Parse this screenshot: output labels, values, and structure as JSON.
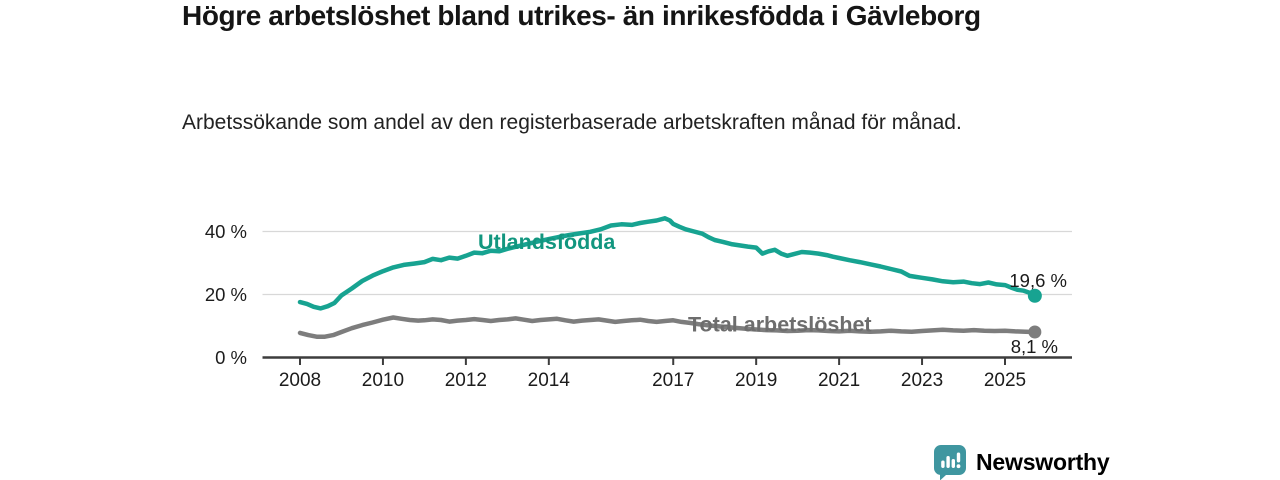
{
  "chart_data": {
    "type": "line",
    "title": "Högre arbetslöshet bland utrikes- än inrikesfödda i Gävleborg",
    "subtitle": "Arbetssökande som andel av den registerbaserade arbetskraften månad för månad.",
    "xlabel": "",
    "ylabel": "",
    "unit": "%",
    "grid": "horizontal-only",
    "legend_position": "inline-labels-on-lines",
    "xlim": [
      2007.1,
      2026.6
    ],
    "ylim": [
      0,
      47
    ],
    "x_ticks": [
      2008,
      2010,
      2012,
      2014,
      2017,
      2019,
      2021,
      2023,
      2025
    ],
    "x_tick_labels": [
      "2008",
      "2010",
      "2012",
      "2014",
      "2017",
      "2019",
      "2021",
      "2023",
      "2025"
    ],
    "y_ticks": [
      0,
      20,
      40
    ],
    "y_tick_labels": [
      "0 %",
      "20 %",
      "40 %"
    ],
    "axis_color": "#3d3d3d",
    "gridline_color": "#d8d8d8",
    "tick_label_color": "#1c1c1c",
    "annotation_color": "#1a1a1a",
    "series": [
      {
        "name": "Utlandsfödda",
        "color": "#17a391",
        "label_color": "#12967f",
        "end_value": 19.6,
        "end_label": "19,6 %",
        "points": [
          [
            2008.0,
            17.6
          ],
          [
            2008.17,
            17.0
          ],
          [
            2008.33,
            16.1
          ],
          [
            2008.5,
            15.6
          ],
          [
            2008.67,
            16.3
          ],
          [
            2008.83,
            17.3
          ],
          [
            2009.0,
            19.7
          ],
          [
            2009.25,
            21.9
          ],
          [
            2009.5,
            24.3
          ],
          [
            2009.75,
            26.0
          ],
          [
            2010.0,
            27.4
          ],
          [
            2010.25,
            28.6
          ],
          [
            2010.5,
            29.4
          ],
          [
            2010.75,
            29.8
          ],
          [
            2011.0,
            30.3
          ],
          [
            2011.2,
            31.3
          ],
          [
            2011.4,
            30.9
          ],
          [
            2011.6,
            31.7
          ],
          [
            2011.8,
            31.4
          ],
          [
            2012.0,
            32.3
          ],
          [
            2012.2,
            33.3
          ],
          [
            2012.4,
            33.1
          ],
          [
            2012.6,
            33.9
          ],
          [
            2012.8,
            33.7
          ],
          [
            2013.0,
            34.5
          ],
          [
            2013.25,
            35.3
          ],
          [
            2013.5,
            36.1
          ],
          [
            2013.75,
            36.9
          ],
          [
            2014.0,
            37.6
          ],
          [
            2014.25,
            38.3
          ],
          [
            2014.5,
            38.9
          ],
          [
            2014.75,
            39.4
          ],
          [
            2015.0,
            39.9
          ],
          [
            2015.25,
            40.7
          ],
          [
            2015.5,
            41.9
          ],
          [
            2015.75,
            42.3
          ],
          [
            2016.0,
            42.1
          ],
          [
            2016.2,
            42.7
          ],
          [
            2016.4,
            43.1
          ],
          [
            2016.6,
            43.5
          ],
          [
            2016.8,
            44.2
          ],
          [
            2016.92,
            43.5
          ],
          [
            2017.0,
            42.4
          ],
          [
            2017.15,
            41.5
          ],
          [
            2017.3,
            40.7
          ],
          [
            2017.5,
            40.0
          ],
          [
            2017.7,
            39.3
          ],
          [
            2017.85,
            38.2
          ],
          [
            2018.0,
            37.3
          ],
          [
            2018.2,
            36.7
          ],
          [
            2018.4,
            36.0
          ],
          [
            2018.6,
            35.6
          ],
          [
            2018.8,
            35.2
          ],
          [
            2019.0,
            34.9
          ],
          [
            2019.15,
            33.0
          ],
          [
            2019.3,
            33.7
          ],
          [
            2019.45,
            34.2
          ],
          [
            2019.6,
            33.0
          ],
          [
            2019.75,
            32.3
          ],
          [
            2019.9,
            32.8
          ],
          [
            2020.1,
            33.5
          ],
          [
            2020.3,
            33.3
          ],
          [
            2020.5,
            33.0
          ],
          [
            2020.7,
            32.5
          ],
          [
            2020.85,
            32.0
          ],
          [
            2021.0,
            31.6
          ],
          [
            2021.25,
            30.9
          ],
          [
            2021.5,
            30.3
          ],
          [
            2021.75,
            29.6
          ],
          [
            2022.0,
            28.9
          ],
          [
            2022.25,
            28.1
          ],
          [
            2022.5,
            27.3
          ],
          [
            2022.7,
            25.9
          ],
          [
            2022.85,
            25.6
          ],
          [
            2023.0,
            25.3
          ],
          [
            2023.25,
            24.8
          ],
          [
            2023.5,
            24.2
          ],
          [
            2023.75,
            23.9
          ],
          [
            2024.0,
            24.1
          ],
          [
            2024.2,
            23.6
          ],
          [
            2024.4,
            23.3
          ],
          [
            2024.6,
            23.8
          ],
          [
            2024.8,
            23.2
          ],
          [
            2025.0,
            23.0
          ],
          [
            2025.15,
            22.2
          ],
          [
            2025.3,
            21.5
          ],
          [
            2025.45,
            21.2
          ],
          [
            2025.6,
            20.5
          ],
          [
            2025.72,
            19.6
          ]
        ]
      },
      {
        "name": "Total arbetslöshet",
        "color": "#7d7d7d",
        "label_color": "#6d6d6d",
        "end_value": 8.1,
        "end_label": "8,1 %",
        "points": [
          [
            2008.0,
            7.8
          ],
          [
            2008.2,
            7.1
          ],
          [
            2008.4,
            6.6
          ],
          [
            2008.6,
            6.6
          ],
          [
            2008.8,
            7.1
          ],
          [
            2009.0,
            8.1
          ],
          [
            2009.25,
            9.3
          ],
          [
            2009.5,
            10.3
          ],
          [
            2009.75,
            11.1
          ],
          [
            2010.0,
            12.0
          ],
          [
            2010.25,
            12.7
          ],
          [
            2010.45,
            12.3
          ],
          [
            2010.65,
            11.9
          ],
          [
            2010.85,
            11.7
          ],
          [
            2011.0,
            11.8
          ],
          [
            2011.2,
            12.1
          ],
          [
            2011.4,
            11.9
          ],
          [
            2011.6,
            11.4
          ],
          [
            2011.8,
            11.7
          ],
          [
            2012.0,
            11.9
          ],
          [
            2012.2,
            12.2
          ],
          [
            2012.4,
            11.9
          ],
          [
            2012.6,
            11.6
          ],
          [
            2012.8,
            11.9
          ],
          [
            2013.0,
            12.1
          ],
          [
            2013.2,
            12.4
          ],
          [
            2013.4,
            12.0
          ],
          [
            2013.6,
            11.6
          ],
          [
            2013.8,
            11.9
          ],
          [
            2014.0,
            12.1
          ],
          [
            2014.2,
            12.3
          ],
          [
            2014.4,
            11.8
          ],
          [
            2014.6,
            11.4
          ],
          [
            2014.8,
            11.7
          ],
          [
            2015.0,
            11.9
          ],
          [
            2015.2,
            12.1
          ],
          [
            2015.4,
            11.7
          ],
          [
            2015.6,
            11.3
          ],
          [
            2015.8,
            11.6
          ],
          [
            2016.0,
            11.8
          ],
          [
            2016.2,
            12.0
          ],
          [
            2016.4,
            11.6
          ],
          [
            2016.6,
            11.3
          ],
          [
            2016.8,
            11.6
          ],
          [
            2017.0,
            11.8
          ],
          [
            2017.2,
            11.3
          ],
          [
            2017.4,
            11.0
          ],
          [
            2017.6,
            10.6
          ],
          [
            2017.8,
            10.3
          ],
          [
            2018.0,
            10.0
          ],
          [
            2018.25,
            9.7
          ],
          [
            2018.5,
            9.4
          ],
          [
            2018.75,
            9.1
          ],
          [
            2019.0,
            8.9
          ],
          [
            2019.25,
            8.7
          ],
          [
            2019.5,
            8.6
          ],
          [
            2019.75,
            8.4
          ],
          [
            2020.0,
            8.5
          ],
          [
            2020.25,
            8.7
          ],
          [
            2020.5,
            8.6
          ],
          [
            2020.75,
            8.4
          ],
          [
            2021.0,
            8.3
          ],
          [
            2021.25,
            8.5
          ],
          [
            2021.5,
            8.3
          ],
          [
            2021.75,
            8.2
          ],
          [
            2022.0,
            8.3
          ],
          [
            2022.25,
            8.5
          ],
          [
            2022.5,
            8.3
          ],
          [
            2022.75,
            8.2
          ],
          [
            2023.0,
            8.4
          ],
          [
            2023.25,
            8.6
          ],
          [
            2023.5,
            8.8
          ],
          [
            2023.75,
            8.6
          ],
          [
            2024.0,
            8.5
          ],
          [
            2024.25,
            8.7
          ],
          [
            2024.5,
            8.5
          ],
          [
            2024.75,
            8.4
          ],
          [
            2025.0,
            8.5
          ],
          [
            2025.25,
            8.3
          ],
          [
            2025.5,
            8.2
          ],
          [
            2025.72,
            8.1
          ]
        ]
      }
    ]
  },
  "branding": {
    "logo_text": "Newsworthy",
    "logo_color": "#3f96a0",
    "logo_icon": "bar-chart-speech-bubble"
  }
}
